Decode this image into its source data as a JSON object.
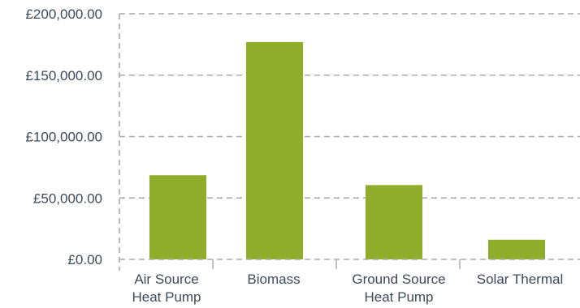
{
  "chart_data": {
    "type": "bar",
    "categories": [
      [
        "Air Source",
        "Heat Pump"
      ],
      [
        "Biomass"
      ],
      [
        "Ground Source",
        "Heat Pump"
      ],
      [
        "Solar Thermal"
      ]
    ],
    "values": [
      68500,
      177000,
      60500,
      16000
    ],
    "y_tick_labels": [
      "£0.00",
      "£50,000.00",
      "£100,000.00",
      "£150,000.00",
      "£200,000.00"
    ],
    "y_ticks": [
      0,
      50000,
      100000,
      150000,
      200000
    ],
    "ylim": [
      0,
      200000
    ],
    "grid": true,
    "bar_color": "#8fac2b",
    "title": "",
    "xlabel": "",
    "ylabel": ""
  }
}
